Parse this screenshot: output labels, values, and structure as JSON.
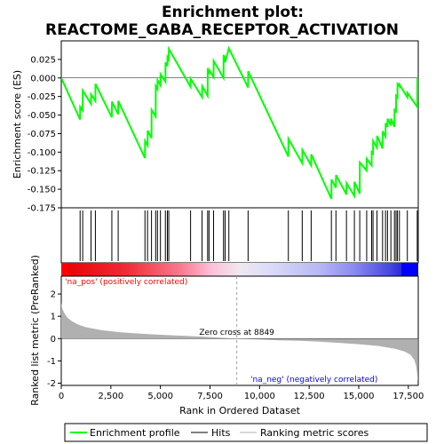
{
  "chart_data": {
    "type": "line",
    "title_line1": "Enrichment plot:",
    "title_line2": "REACTOME_GABA_RECEPTOR_ACTIVATION",
    "ylabel_top": "Enrichment score (ES)",
    "ylabel_bottom": "Ranked list metric (PreRanked)",
    "xlabel": "Rank in Ordered Dataset",
    "x_range": [
      0,
      18000
    ],
    "es_ylim": [
      -0.175,
      0.05
    ],
    "es_yticks": [
      0.025,
      0.0,
      -0.025,
      -0.05,
      -0.075,
      -0.1,
      -0.125,
      -0.15,
      -0.175
    ],
    "es_ytick_labels": [
      "0.025",
      "0.000",
      "-0.025",
      "-0.050",
      "-0.075",
      "-0.100",
      "-0.125",
      "-0.150",
      "-0.175"
    ],
    "metric_ylim": [
      -2.1,
      2.8
    ],
    "metric_yticks": [
      2,
      1,
      0,
      -1,
      -2
    ],
    "metric_ytick_labels": [
      "2",
      "1",
      "0",
      "-1",
      "-2"
    ],
    "xticks": [
      0,
      2500,
      5000,
      7500,
      10000,
      12500,
      15000,
      17500
    ],
    "xtick_labels": [
      "0",
      "2,500",
      "5,000",
      "7,500",
      "10,000",
      "12,500",
      "15,000",
      "17,500"
    ],
    "zero_cross": 8849,
    "zero_cross_label": "Zero cross at 8849",
    "pos_label": "'na_pos' (positively correlated)",
    "neg_label": "'na_neg' (negatively correlated)",
    "legend": [
      "Enrichment profile",
      "Hits",
      "Ranking metric scores"
    ],
    "hits": [
      950,
      1080,
      1500,
      1720,
      2550,
      2870,
      4220,
      4350,
      4550,
      4760,
      4850,
      5000,
      5250,
      5350,
      5420,
      6520,
      7100,
      7380,
      7450,
      7680,
      8180,
      8260,
      8450,
      9420,
      11450,
      12150,
      12600,
      13620,
      13850,
      14380,
      14780,
      15050,
      15400,
      15650,
      15720,
      15920,
      16200,
      16350,
      16450,
      16620,
      16800,
      16880,
      16950,
      17050,
      17450,
      17950
    ],
    "es_profile": [
      [
        0,
        0.0
      ],
      [
        950,
        -0.056
      ],
      [
        955,
        -0.039
      ],
      [
        1080,
        -0.044
      ],
      [
        1085,
        -0.017
      ],
      [
        1500,
        -0.035
      ],
      [
        1505,
        -0.022
      ],
      [
        1720,
        -0.031
      ],
      [
        1725,
        -0.008
      ],
      [
        2550,
        -0.053
      ],
      [
        2555,
        -0.032
      ],
      [
        2870,
        -0.049
      ],
      [
        2875,
        -0.031
      ],
      [
        4220,
        -0.108
      ],
      [
        4225,
        -0.085
      ],
      [
        4350,
        -0.091
      ],
      [
        4355,
        -0.071
      ],
      [
        4550,
        -0.081
      ],
      [
        4555,
        -0.043
      ],
      [
        4760,
        -0.052
      ],
      [
        4765,
        -0.011
      ],
      [
        4850,
        -0.015
      ],
      [
        4855,
        -0.003
      ],
      [
        5000,
        -0.01
      ],
      [
        5005,
        0.005
      ],
      [
        5250,
        -0.005
      ],
      [
        5255,
        0.021
      ],
      [
        5350,
        0.016
      ],
      [
        5355,
        0.028
      ],
      [
        5420,
        0.025
      ],
      [
        5425,
        0.039
      ],
      [
        6520,
        -0.012
      ],
      [
        6525,
        -0.001
      ],
      [
        7100,
        -0.026
      ],
      [
        7105,
        -0.011
      ],
      [
        7380,
        -0.024
      ],
      [
        7385,
        0.01
      ],
      [
        7450,
        0.007
      ],
      [
        7455,
        0.011
      ],
      [
        7680,
        0.001
      ],
      [
        7685,
        0.023
      ],
      [
        8180,
        0.0
      ],
      [
        8185,
        0.031
      ],
      [
        8260,
        0.027
      ],
      [
        8265,
        0.021
      ],
      [
        8450,
        0.04
      ],
      [
        9420,
        -0.013
      ],
      [
        9425,
        0.009
      ],
      [
        11450,
        -0.106
      ],
      [
        11455,
        -0.082
      ],
      [
        12150,
        -0.115
      ],
      [
        12155,
        -0.097
      ],
      [
        12600,
        -0.118
      ],
      [
        12605,
        -0.103
      ],
      [
        13620,
        -0.163
      ],
      [
        13625,
        -0.137
      ],
      [
        13850,
        -0.148
      ],
      [
        13855,
        -0.131
      ],
      [
        14380,
        -0.157
      ],
      [
        14385,
        -0.142
      ],
      [
        14780,
        -0.159
      ],
      [
        14785,
        -0.14
      ],
      [
        15050,
        -0.156
      ],
      [
        15055,
        -0.114
      ],
      [
        15400,
        -0.125
      ],
      [
        15405,
        -0.109
      ],
      [
        15650,
        -0.118
      ],
      [
        15655,
        -0.1
      ],
      [
        15720,
        -0.102
      ],
      [
        15725,
        -0.085
      ],
      [
        15920,
        -0.094
      ],
      [
        15925,
        -0.078
      ],
      [
        16200,
        -0.095
      ],
      [
        16205,
        -0.072
      ],
      [
        16350,
        -0.079
      ],
      [
        16355,
        -0.061
      ],
      [
        16450,
        -0.066
      ],
      [
        16455,
        -0.055
      ],
      [
        16620,
        -0.064
      ],
      [
        16625,
        -0.055
      ],
      [
        16800,
        -0.066
      ],
      [
        16805,
        -0.043
      ],
      [
        16880,
        -0.045
      ],
      [
        16885,
        -0.024
      ],
      [
        16950,
        -0.026
      ],
      [
        16955,
        -0.008
      ],
      [
        17050,
        -0.011
      ],
      [
        17055,
        -0.009
      ],
      [
        17450,
        -0.026
      ],
      [
        17455,
        -0.02
      ],
      [
        17950,
        -0.039
      ],
      [
        17955,
        0.0
      ]
    ],
    "metric_curve": [
      [
        0,
        1.6
      ],
      [
        50,
        1.35
      ],
      [
        150,
        1.15
      ],
      [
        300,
        0.95
      ],
      [
        500,
        0.8
      ],
      [
        800,
        0.65
      ],
      [
        1200,
        0.52
      ],
      [
        2000,
        0.38
      ],
      [
        3000,
        0.28
      ],
      [
        4000,
        0.22
      ],
      [
        5000,
        0.17
      ],
      [
        6000,
        0.13
      ],
      [
        7000,
        0.09
      ],
      [
        8000,
        0.04
      ],
      [
        8849,
        0.0
      ],
      [
        10000,
        -0.04
      ],
      [
        11000,
        -0.08
      ],
      [
        12000,
        -0.1
      ],
      [
        13000,
        -0.14
      ],
      [
        14000,
        -0.19
      ],
      [
        15000,
        -0.25
      ],
      [
        16000,
        -0.33
      ],
      [
        16800,
        -0.45
      ],
      [
        17300,
        -0.58
      ],
      [
        17600,
        -0.72
      ],
      [
        17800,
        -0.95
      ],
      [
        17900,
        -1.25
      ],
      [
        17990,
        -1.9
      ]
    ],
    "colors": {
      "profile": "#00ff00",
      "hits": "#000000",
      "metric_fill": "#b0b0b0",
      "pos_text": "#ff0000",
      "neg_text": "#0000ff",
      "zero_line": "#a0a0a0",
      "bar_red": "#ff0000",
      "bar_blue": "#0000ff"
    }
  }
}
